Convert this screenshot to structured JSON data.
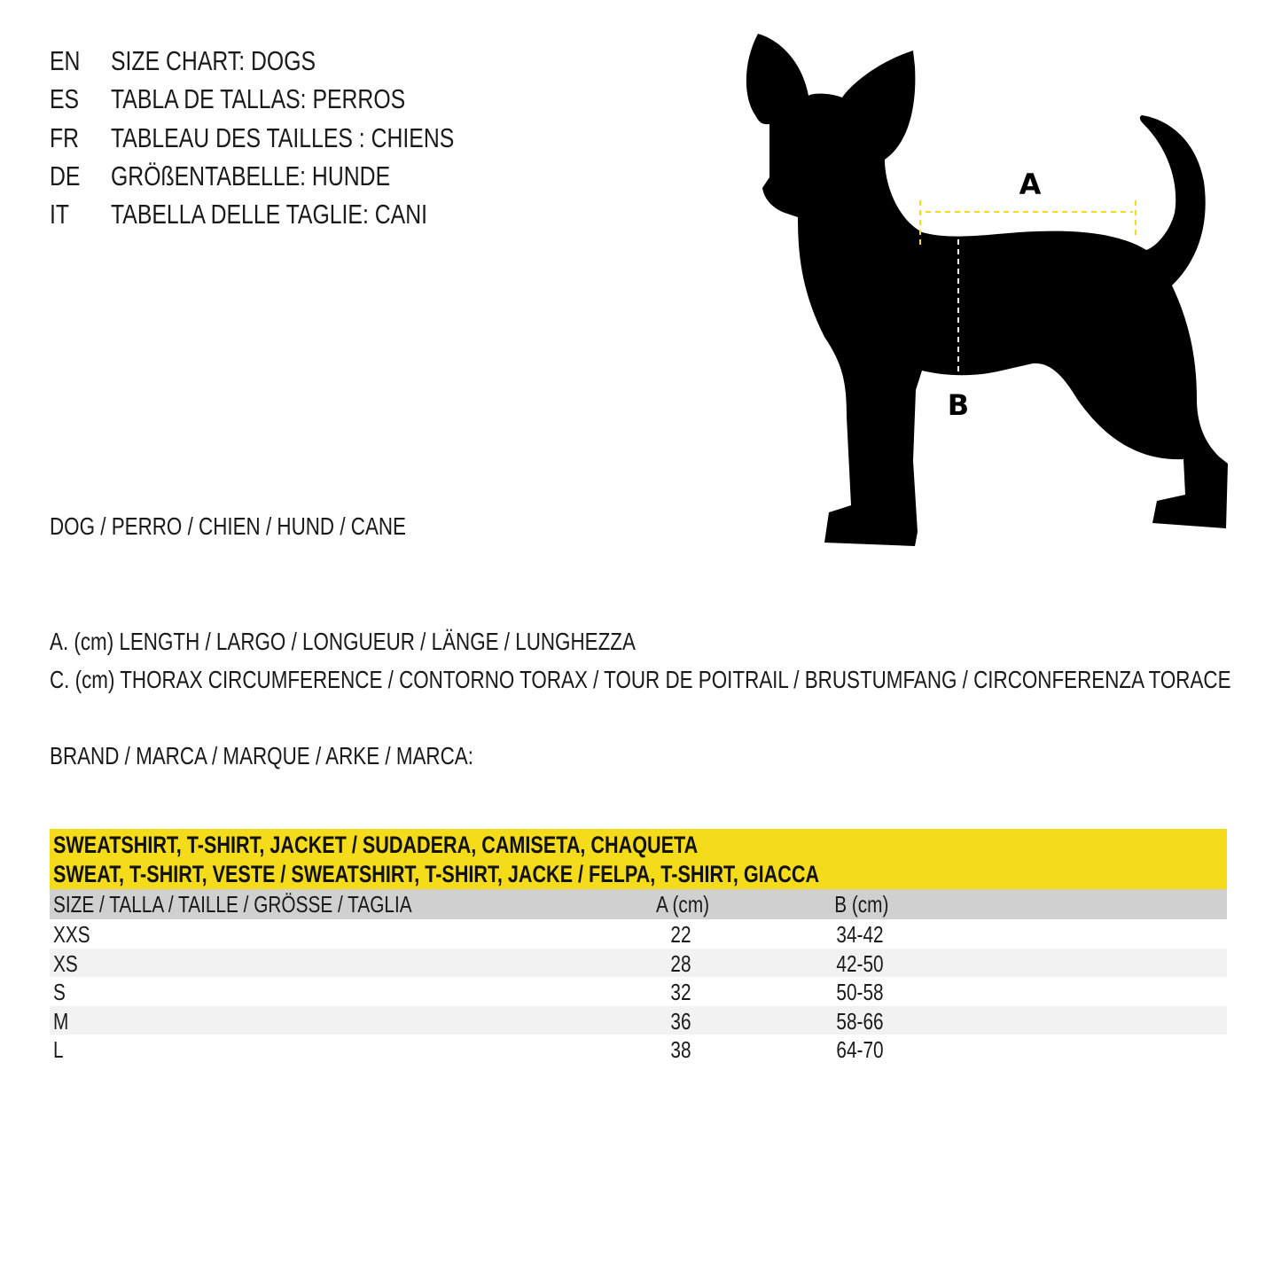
{
  "titles": [
    {
      "lang": "EN",
      "text": "SIZE CHART: DOGS"
    },
    {
      "lang": "ES",
      "text": "TABLA DE TALLAS: PERROS"
    },
    {
      "lang": "FR",
      "text": "TABLEAU DES TAILLES : CHIENS"
    },
    {
      "lang": "DE",
      "text": "GRÖßENTABELLE: HUNDE"
    },
    {
      "lang": "IT",
      "text": "TABELLA DELLE TAGLIE: CANI"
    }
  ],
  "animal": "DOG / PERRO / CHIEN / HUND / CANE",
  "legend": {
    "a": "A. (cm) LENGTH / LARGO / LONGUEUR / LÄNGE / LUNGHEZZA",
    "c": "C. (cm) THORAX CIRCUMFERENCE / CONTORNO TORAX / TOUR DE POITRAIL / BRUSTUMFANG / CIRCONFERENZA TORACE"
  },
  "brand": "BRAND / MARCA / MARQUE / ARKE / MARCA:",
  "diagram": {
    "label_a": "A",
    "label_b": "B",
    "accent": "#f5dc1b",
    "silhouette": "#000000"
  },
  "table": {
    "title_line1": "SWEATSHIRT, T-SHIRT, JACKET / SUDADERA, CAMISETA, CHAQUETA",
    "title_line2": "SWEAT, T-SHIRT, VESTE / SWEATSHIRT, T-SHIRT, JACKE / FELPA, T-SHIRT, GIACCA",
    "headers": [
      "SIZE / TALLA / TAILLE / GRÖSSE / TAGLIA",
      "A (cm)",
      "B (cm)"
    ],
    "rows": [
      [
        "XXS",
        "22",
        "34-42"
      ],
      [
        "XS",
        "28",
        "42-50"
      ],
      [
        "S",
        "32",
        "50-58"
      ],
      [
        "M",
        "36",
        "58-66"
      ],
      [
        "L",
        "38",
        "64-70"
      ]
    ]
  }
}
